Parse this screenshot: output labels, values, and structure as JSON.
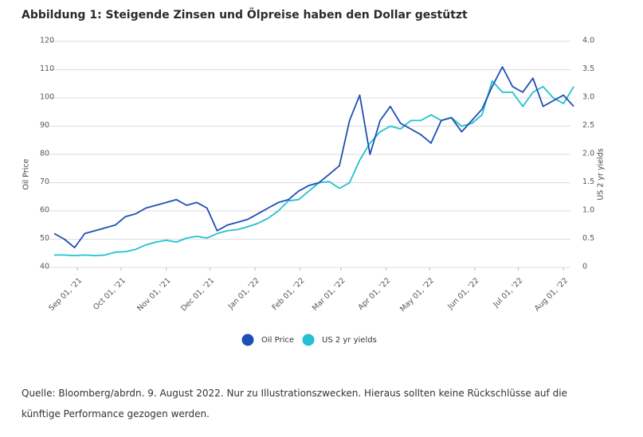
{
  "chart_data": {
    "type": "line",
    "title": "Abbildung 1: Steigende Zinsen und Ölpreise haben den Dollar gestützt",
    "y_label": "Oil Price",
    "y2_label": "US 2 yr yields",
    "x": [
      "2021-08-16",
      "2021-08-23",
      "2021-08-30",
      "2021-09-06",
      "2021-09-13",
      "2021-09-20",
      "2021-09-27",
      "2021-10-04",
      "2021-10-11",
      "2021-10-18",
      "2021-10-25",
      "2021-11-01",
      "2021-11-08",
      "2021-11-15",
      "2021-11-22",
      "2021-11-29",
      "2021-12-06",
      "2021-12-13",
      "2021-12-20",
      "2021-12-27",
      "2022-01-03",
      "2022-01-10",
      "2022-01-17",
      "2022-01-24",
      "2022-01-31",
      "2022-02-07",
      "2022-02-14",
      "2022-02-21",
      "2022-02-28",
      "2022-03-07",
      "2022-03-14",
      "2022-03-21",
      "2022-03-28",
      "2022-04-04",
      "2022-04-11",
      "2022-04-18",
      "2022-04-25",
      "2022-05-02",
      "2022-05-09",
      "2022-05-16",
      "2022-05-23",
      "2022-05-30",
      "2022-06-06",
      "2022-06-13",
      "2022-06-20",
      "2022-06-27",
      "2022-07-04",
      "2022-07-11",
      "2022-07-18",
      "2022-07-25",
      "2022-08-01",
      "2022-08-08"
    ],
    "series": [
      {
        "name": "Oil Price",
        "color": "#1f4fb4",
        "values": [
          52,
          50,
          47,
          52,
          53,
          54,
          55,
          58,
          59,
          61,
          62,
          63,
          64,
          62,
          63,
          61,
          53,
          55,
          56,
          57,
          59,
          61,
          63,
          64,
          67,
          69,
          70,
          73,
          76,
          92,
          101,
          80,
          92,
          97,
          91,
          89,
          87,
          84,
          92,
          93,
          88,
          92,
          96,
          104,
          111,
          104,
          102,
          107,
          97,
          99,
          101,
          97
        ]
      },
      {
        "name": "US 2 yr yields",
        "color": "#22c1d2",
        "axis": "y2",
        "values": [
          0.22,
          0.22,
          0.21,
          0.22,
          0.21,
          0.22,
          0.27,
          0.28,
          0.32,
          0.4,
          0.45,
          0.48,
          0.45,
          0.52,
          0.55,
          0.52,
          0.6,
          0.65,
          0.67,
          0.72,
          0.78,
          0.87,
          1.0,
          1.18,
          1.2,
          1.35,
          1.5,
          1.52,
          1.4,
          1.5,
          1.9,
          2.2,
          2.4,
          2.5,
          2.45,
          2.6,
          2.6,
          2.7,
          2.6,
          2.65,
          2.5,
          2.55,
          2.7,
          3.3,
          3.1,
          3.1,
          2.85,
          3.1,
          3.2,
          3.0,
          2.9,
          3.2
        ]
      }
    ],
    "xlim": [
      "2021-08-16",
      "2022-08-08"
    ],
    "xticks": [
      {
        "value": "2021-09-01",
        "label": "Sep 01, '21"
      },
      {
        "value": "2021-10-01",
        "label": "Oct 01, '21"
      },
      {
        "value": "2021-11-01",
        "label": "Nov 01, '21"
      },
      {
        "value": "2021-12-01",
        "label": "Dec 01, '21"
      },
      {
        "value": "2022-01-01",
        "label": "Jan 01, '22"
      },
      {
        "value": "2022-02-01",
        "label": "Feb 01, '22"
      },
      {
        "value": "2022-03-01",
        "label": "Mar 01, '22"
      },
      {
        "value": "2022-04-01",
        "label": "Apr 01, '22"
      },
      {
        "value": "2022-05-01",
        "label": "May 01, '22"
      },
      {
        "value": "2022-06-01",
        "label": "Jun 01, '22"
      },
      {
        "value": "2022-07-01",
        "label": "Jul 01, '22"
      },
      {
        "value": "2022-08-01",
        "label": "Aug 01, '22"
      }
    ],
    "ylim": [
      40,
      120
    ],
    "yticks": [
      40,
      50,
      60,
      70,
      80,
      90,
      100,
      110,
      120
    ],
    "y2lim": [
      0,
      4
    ],
    "y2ticks": [
      0,
      0.5,
      {
        "value": 1,
        "label": "1.0"
      },
      1.5,
      {
        "value": 2,
        "label": "2.0"
      },
      2.5,
      {
        "value": 3,
        "label": "3.0"
      },
      3.5,
      {
        "value": 4,
        "label": "4.0"
      }
    ],
    "grid": true,
    "legend": "bottom",
    "source": "Quelle: Bloomberg/abrdn. 9. August 2022. Nur zu Illustrationszwecken. Hieraus sollten keine Rückschlüsse auf die künftige Performance gezogen werden."
  }
}
